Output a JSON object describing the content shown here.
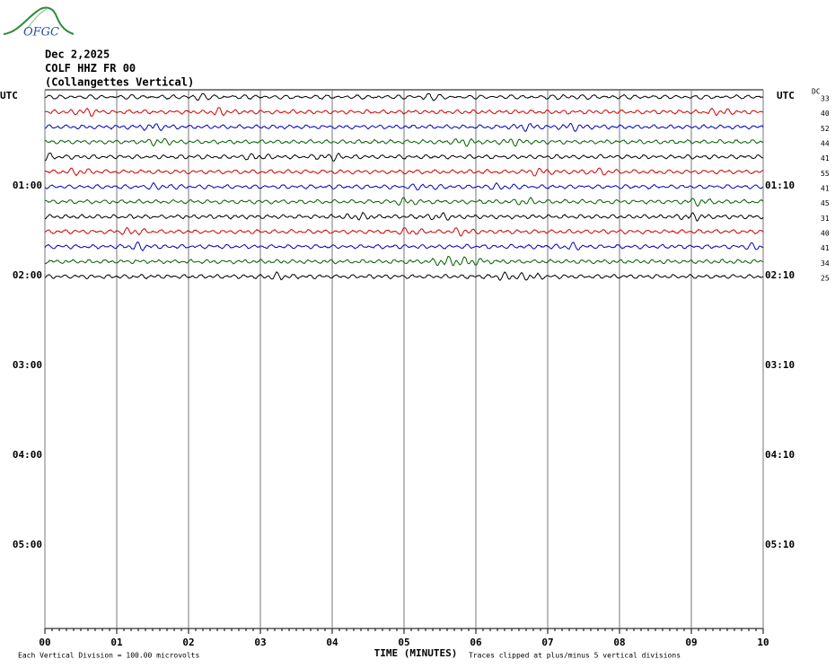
{
  "chart_data": {
    "type": "helicorder",
    "logo": "OFGC",
    "title_lines": [
      "Dec 2,2025",
      "COLF HHZ FR 00",
      "(Collangettes Vertical)"
    ],
    "left_labels": [
      "UTC",
      "01:00",
      "02:00",
      "03:00",
      "04:00",
      "05:00"
    ],
    "right_labels": [
      "UTC",
      "01:10",
      "02:10",
      "03:10",
      "04:10",
      "05:10"
    ],
    "dc_header": "DC",
    "dc_values": [
      33,
      40,
      52,
      44,
      41,
      55,
      41,
      45,
      31,
      40,
      41,
      34,
      25
    ],
    "trace_colors": [
      "#000000",
      "#d00000",
      "#0000c0",
      "#006000"
    ],
    "xlim": [
      0,
      10
    ],
    "xticks": [
      {
        "value": 0,
        "label": "00"
      },
      {
        "value": 1,
        "label": "01"
      },
      {
        "value": 2,
        "label": "02"
      },
      {
        "value": 3,
        "label": "03"
      },
      {
        "value": 4,
        "label": "04"
      },
      {
        "value": 5,
        "label": "05"
      },
      {
        "value": 6,
        "label": "06"
      },
      {
        "value": 7,
        "label": "07"
      },
      {
        "value": 8,
        "label": "08"
      },
      {
        "value": 9,
        "label": "09"
      },
      {
        "value": 10,
        "label": "10"
      }
    ],
    "x_label": "TIME (MINUTES)",
    "scale_note": "Each Vertical Division =  100.00 microvolts",
    "clip_note": "Traces clipped at plus/minus 5 vertical divisions",
    "grid": true
  }
}
